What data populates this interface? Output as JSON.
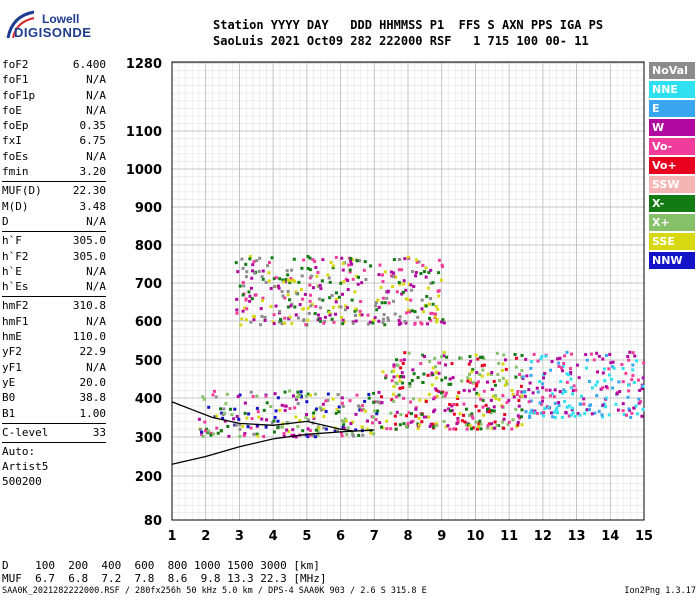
{
  "logo": {
    "line1": "Lowell",
    "line2": "DIGISONDE"
  },
  "header": {
    "line1": "Station YYYY DAY   DDD HHMMSS P1  FFS S AXN PPS IGA PS",
    "line2": "SaoLuis 2021 Oct09 282 222000 RSF   1 715 100 00- 11"
  },
  "params": {
    "group1": [
      {
        "name": "foF2",
        "value": "6.400"
      },
      {
        "name": "foF1",
        "value": "N/A"
      },
      {
        "name": "foF1p",
        "value": "N/A"
      },
      {
        "name": "foE",
        "value": "N/A"
      },
      {
        "name": "foEp",
        "value": "0.35"
      },
      {
        "name": "fxI",
        "value": "6.75"
      },
      {
        "name": "foEs",
        "value": "N/A"
      },
      {
        "name": "fmin",
        "value": "3.20"
      }
    ],
    "group2": [
      {
        "name": "MUF(D)",
        "value": "22.30"
      },
      {
        "name": "M(D)",
        "value": "3.48"
      },
      {
        "name": "D",
        "value": "N/A"
      }
    ],
    "group3": [
      {
        "name": "h`F",
        "value": "305.0"
      },
      {
        "name": "h`F2",
        "value": "305.0"
      },
      {
        "name": "h`E",
        "value": "N/A"
      },
      {
        "name": "h`Es",
        "value": "N/A"
      }
    ],
    "group4": [
      {
        "name": "hmF2",
        "value": "310.8"
      },
      {
        "name": "hmF1",
        "value": "N/A"
      },
      {
        "name": "hmE",
        "value": "110.0"
      },
      {
        "name": "yF2",
        "value": "22.9"
      },
      {
        "name": "yF1",
        "value": "N/A"
      },
      {
        "name": "yE",
        "value": "20.0"
      },
      {
        "name": "B0",
        "value": "38.8"
      },
      {
        "name": "B1",
        "value": "1.00"
      }
    ],
    "clevel": {
      "name": "C-level",
      "value": "33"
    },
    "auto_lines": [
      "Auto:",
      "Artist5",
      "500200"
    ]
  },
  "legend": [
    {
      "label": "NoVal",
      "color": "#8c8c8c"
    },
    {
      "label": "NNE",
      "color": "#2fe0f0"
    },
    {
      "label": "E",
      "color": "#3aa6f0"
    },
    {
      "label": "W",
      "color": "#b0089f"
    },
    {
      "label": "Vo-",
      "color": "#f03c9a"
    },
    {
      "label": "Vo+",
      "color": "#e8001f"
    },
    {
      "label": "SSW",
      "color": "#f5b5b5"
    },
    {
      "label": "X-",
      "color": "#147a14"
    },
    {
      "label": "X+",
      "color": "#86c06a"
    },
    {
      "label": "SSE",
      "color": "#d8d810"
    },
    {
      "label": "NNW",
      "color": "#1313c8"
    }
  ],
  "chart_data": {
    "type": "scatter",
    "x_ticks": [
      1,
      2,
      3,
      4,
      5,
      6,
      7,
      8,
      9,
      10,
      11,
      12,
      13,
      14,
      15
    ],
    "y_ticks": [
      80,
      200,
      300,
      400,
      500,
      600,
      700,
      800,
      900,
      1000,
      1100,
      1280
    ],
    "xlim": [
      1,
      15
    ],
    "ylim": [
      80,
      1280
    ],
    "grid": true,
    "clusters": [
      {
        "name": "F-layer main trace",
        "x_range": [
          1.8,
          7.2
        ],
        "y_range": [
          300,
          420
        ],
        "colors": [
          "#b0089f",
          "#f03c9a",
          "#1313c8",
          "#147a14",
          "#d8d810",
          "#86c06a",
          "#8c8c8c"
        ]
      },
      {
        "name": "F-layer high band",
        "x_range": [
          7.2,
          11.4
        ],
        "y_range": [
          320,
          520
        ],
        "colors": [
          "#b0089f",
          "#f03c9a",
          "#e8001f",
          "#d8d810",
          "#86c06a",
          "#147a14"
        ]
      },
      {
        "name": "oblique echoes",
        "x_range": [
          11.4,
          15.0
        ],
        "y_range": [
          350,
          520
        ],
        "colors": [
          "#2fe0f0",
          "#3aa6f0",
          "#f03c9a",
          "#b0089f"
        ]
      },
      {
        "name": "second hop",
        "x_range": [
          2.9,
          9.1
        ],
        "y_range": [
          590,
          770
        ],
        "colors": [
          "#b0089f",
          "#f03c9a",
          "#d8d810",
          "#8c8c8c",
          "#147a14"
        ]
      }
    ],
    "profile_curves": [
      {
        "name": "O-trace model",
        "points": [
          [
            1.0,
            390
          ],
          [
            1.6,
            370
          ],
          [
            2.2,
            350
          ],
          [
            3.0,
            335
          ],
          [
            4.0,
            330
          ],
          [
            5.0,
            340
          ],
          [
            5.5,
            330
          ],
          [
            6.0,
            320
          ],
          [
            6.4,
            315
          ]
        ]
      },
      {
        "name": "electron density profile",
        "points": [
          [
            1.0,
            230
          ],
          [
            2.0,
            250
          ],
          [
            3.0,
            275
          ],
          [
            4.0,
            295
          ],
          [
            5.0,
            307
          ],
          [
            6.0,
            313
          ],
          [
            7.0,
            318
          ]
        ]
      }
    ]
  },
  "dmuf": {
    "d_row": "D    100  200  400  600  800 1000 1500 3000 [km]",
    "muf_row": "MUF  6.7  6.8  7.2  7.8  8.6  9.8 13.3 22.3 [MHz]"
  },
  "footer": {
    "left": "SAA0K_2021282222000.RSF / 280fx256h 50 kHz 5.0 km / DPS-4 SAA0K 903 / 2.6 S 315.8 E",
    "right": "Ion2Png 1.3.17"
  }
}
